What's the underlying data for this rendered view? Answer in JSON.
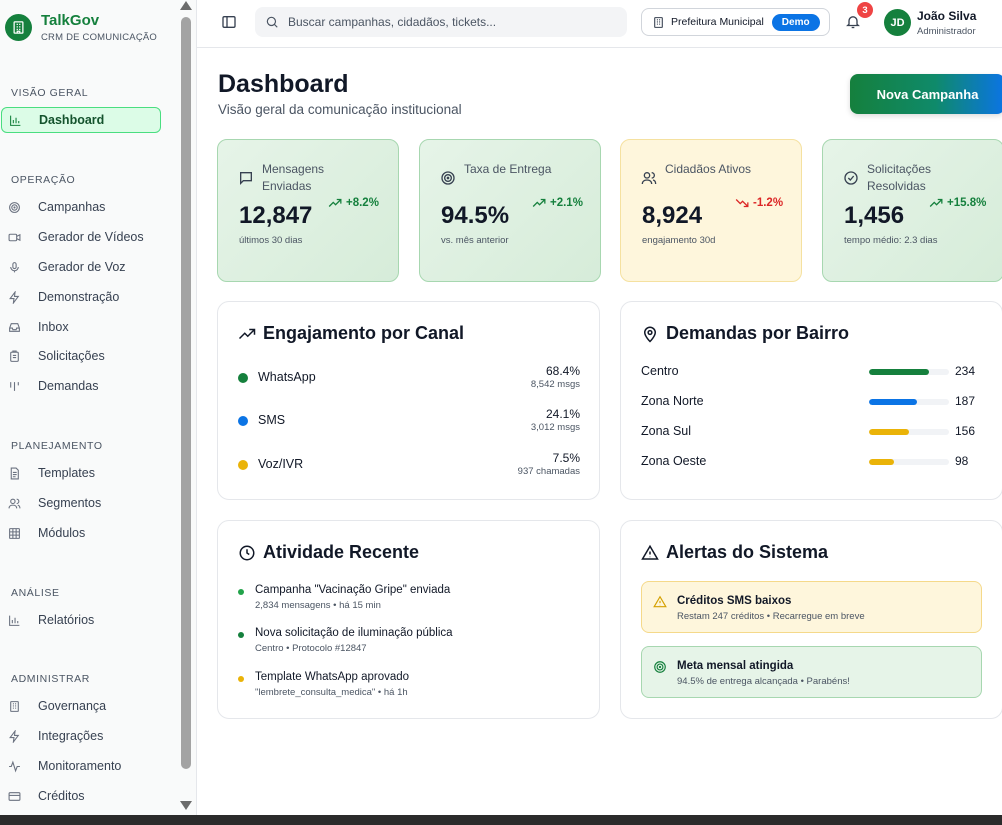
{
  "app": {
    "name": "TalkGov",
    "subtitle": "CRM DE COMUNICAÇÃO"
  },
  "sidebar": {
    "sections": [
      {
        "title": "VISÃO GERAL",
        "items": [
          {
            "label": "Dashboard",
            "icon": "bar-chart-icon",
            "active": true
          }
        ]
      },
      {
        "title": "OPERAÇÃO",
        "items": [
          {
            "label": "Campanhas",
            "icon": "target-icon"
          },
          {
            "label": "Gerador de Vídeos",
            "icon": "video-icon"
          },
          {
            "label": "Gerador de Voz",
            "icon": "microphone-icon"
          },
          {
            "label": "Demonstração",
            "icon": "lightning-icon"
          },
          {
            "label": "Inbox",
            "icon": "inbox-icon"
          },
          {
            "label": "Solicitações",
            "icon": "clipboard-icon"
          },
          {
            "label": "Demandas",
            "icon": "columns-icon"
          }
        ]
      },
      {
        "title": "PLANEJAMENTO",
        "items": [
          {
            "label": "Templates",
            "icon": "document-icon"
          },
          {
            "label": "Segmentos",
            "icon": "users-icon"
          },
          {
            "label": "Módulos",
            "icon": "grid-icon"
          }
        ]
      },
      {
        "title": "ANÁLISE",
        "items": [
          {
            "label": "Relatórios",
            "icon": "bar-chart-icon"
          }
        ]
      },
      {
        "title": "ADMINISTRAR",
        "items": [
          {
            "label": "Governança",
            "icon": "building-icon"
          },
          {
            "label": "Integrações",
            "icon": "lightning-icon"
          },
          {
            "label": "Monitoramento",
            "icon": "pulse-icon"
          },
          {
            "label": "Créditos",
            "icon": "credit-card-icon"
          }
        ]
      }
    ]
  },
  "topbar": {
    "search_placeholder": "Buscar campanhas, cidadãos, tickets...",
    "org_label": "Prefeitura Municipal",
    "org_badge": "Demo",
    "notifications_count": "3",
    "user": {
      "initials": "JD",
      "name": "João Silva",
      "role": "Administrador"
    }
  },
  "header": {
    "title": "Dashboard",
    "subtitle": "Visão geral da comunicação institucional",
    "primary_action": "Nova Campanha"
  },
  "stats": [
    {
      "label": "Mensagens Enviadas",
      "value": "12,847",
      "trend": "+8.2%",
      "direction": "up",
      "note": "últimos 30 dias",
      "icon": "message-icon",
      "tone": "green"
    },
    {
      "label": "Taxa de Entrega",
      "value": "94.5%",
      "trend": "+2.1%",
      "direction": "up",
      "note": "vs. mês anterior",
      "icon": "target-icon",
      "tone": "green"
    },
    {
      "label": "Cidadãos Ativos",
      "value": "8,924",
      "trend": "-1.2%",
      "direction": "down",
      "note": "engajamento 30d",
      "icon": "users-icon",
      "tone": "yellow"
    },
    {
      "label": "Solicitações Resolvidas",
      "value": "1,456",
      "trend": "+15.8%",
      "direction": "up",
      "note": "tempo médio: 2.3 dias",
      "icon": "check-circle-icon",
      "tone": "green"
    }
  ],
  "engagement": {
    "title": "Engajamento por Canal",
    "channels": [
      {
        "name": "WhatsApp",
        "percent": "68.4%",
        "count": "8,542 msgs",
        "color": "#15803d"
      },
      {
        "name": "SMS",
        "percent": "24.1%",
        "count": "3,012 msgs",
        "color": "#0b74e5"
      },
      {
        "name": "Voz/IVR",
        "percent": "7.5%",
        "count": "937 chamadas",
        "color": "#eab308"
      }
    ]
  },
  "demands": {
    "title": "Demandas por Bairro",
    "max": 234,
    "items": [
      {
        "name": "Centro",
        "value": 234,
        "color": "#15803d"
      },
      {
        "name": "Zona Norte",
        "value": 187,
        "color": "#0b74e5"
      },
      {
        "name": "Zona Sul",
        "value": 156,
        "color": "#eab308"
      },
      {
        "name": "Zona Oeste",
        "value": 98,
        "color": "#eab308"
      }
    ]
  },
  "activity": {
    "title": "Atividade Recente",
    "items": [
      {
        "title": "Campanha \"Vacinação Gripe\" enviada",
        "detail": "2,834 mensagens • há 15 min",
        "color": "#22a34a"
      },
      {
        "title": "Nova solicitação de iluminação pública",
        "detail": "Centro • Protocolo #12847",
        "color": "#15803d"
      },
      {
        "title": "Template WhatsApp aprovado",
        "detail": "\"lembrete_consulta_medica\" • há 1h",
        "color": "#eab308"
      }
    ]
  },
  "alerts": {
    "title": "Alertas do Sistema",
    "items": [
      {
        "title": "Créditos SMS baixos",
        "detail": "Restam 247 créditos • Recarregue em breve",
        "tone": "warn",
        "icon": "warning-icon"
      },
      {
        "title": "Meta mensal atingida",
        "detail": "94.5% de entrega alcançada • Parabéns!",
        "tone": "ok",
        "icon": "target-icon"
      }
    ]
  }
}
